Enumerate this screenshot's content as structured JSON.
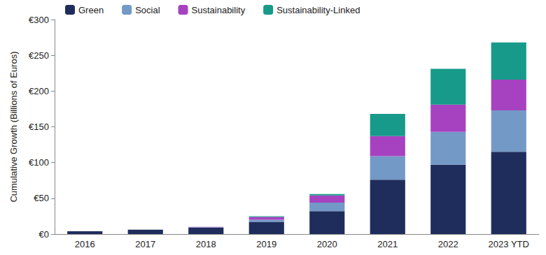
{
  "chart_data": {
    "type": "bar",
    "stacked": true,
    "grid": false,
    "legend": "top-left",
    "y_label": "Cumulative Growth (Billions of Euros)",
    "categories": [
      "2016",
      "2017",
      "2018",
      "2019",
      "2020",
      "2021",
      "2022",
      "2023 YTD"
    ],
    "series": [
      {
        "name": "Green",
        "color": "#1f2d5c",
        "values": [
          4,
          6,
          9,
          17,
          32,
          76,
          97,
          115
        ]
      },
      {
        "name": "Social",
        "color": "#7399c6",
        "values": [
          0,
          0,
          0.5,
          3,
          12,
          33,
          46,
          58
        ]
      },
      {
        "name": "Sustainability",
        "color": "#a642c0",
        "values": [
          0,
          0,
          0.5,
          4,
          10,
          28,
          38,
          43
        ]
      },
      {
        "name": "Sustainability-Linked",
        "color": "#179a8a",
        "values": [
          0,
          0,
          0,
          1,
          2,
          31,
          50,
          52
        ]
      }
    ],
    "ylim": [
      0,
      300
    ],
    "yticks": [
      {
        "value": 0,
        "label": "€0"
      },
      {
        "value": 50,
        "label": "€50"
      },
      {
        "value": 100,
        "label": "€100"
      },
      {
        "value": 150,
        "label": "€150"
      },
      {
        "value": 200,
        "label": "€200"
      },
      {
        "value": 250,
        "label": "€250"
      },
      {
        "value": 300,
        "label": "€300"
      }
    ]
  }
}
